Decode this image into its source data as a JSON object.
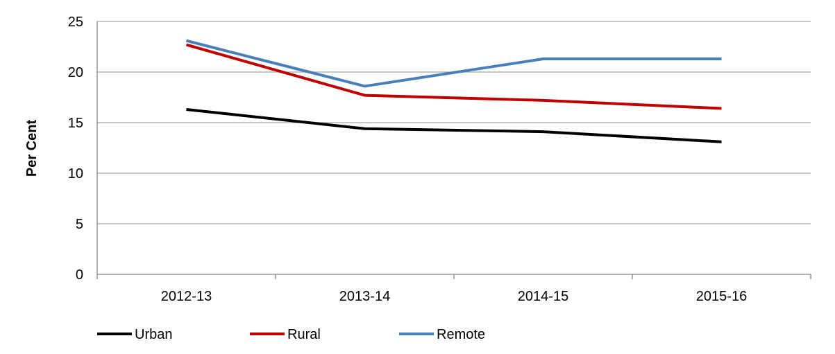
{
  "chart_data": {
    "type": "line",
    "title": "",
    "xlabel": "",
    "ylabel": "Per Cent",
    "categories": [
      "2012-13",
      "2013-14",
      "2014-15",
      "2015-16"
    ],
    "ylim": [
      0,
      25
    ],
    "yticks": [
      0,
      5,
      10,
      15,
      20,
      25
    ],
    "grid": true,
    "legend_position": "bottom-left",
    "series": [
      {
        "name": "Urban",
        "color": "#000000",
        "values": [
          16.3,
          14.4,
          14.1,
          13.1
        ]
      },
      {
        "name": "Rural",
        "color": "#C00000",
        "values": [
          22.7,
          17.7,
          17.2,
          16.4
        ]
      },
      {
        "name": "Remote",
        "color": "#4A7EBB",
        "values": [
          23.1,
          18.6,
          21.3,
          21.3
        ]
      }
    ]
  }
}
